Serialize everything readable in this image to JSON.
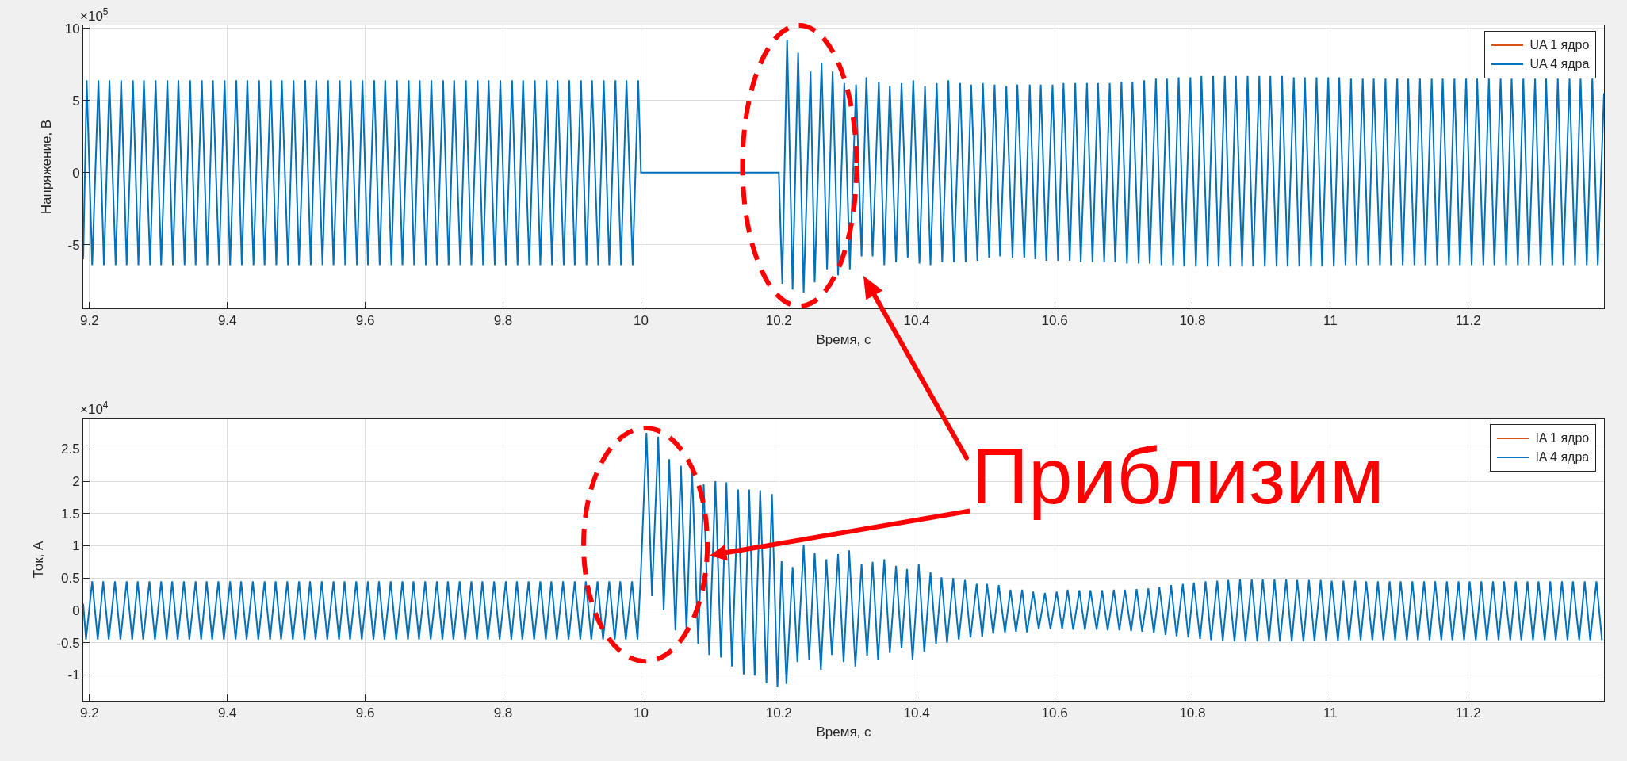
{
  "chart_data": [
    {
      "type": "line",
      "xlabel": "Время, с",
      "ylabel": "Напряжение, В",
      "xlim": [
        9.191,
        11.397
      ],
      "xticks": [
        9.2,
        9.4,
        9.6,
        9.8,
        10,
        10.2,
        10.4,
        10.6,
        10.8,
        11,
        11.2
      ],
      "ylim": [
        -9.4,
        10.2
      ],
      "yticks": [
        -5,
        0,
        5,
        10
      ],
      "grid": true,
      "legend": "top right",
      "annotations": [
        "×10$^{5}$"
      ],
      "series": [
        {
          "name": "UA 1 ядро",
          "color": "#d95319"
        },
        {
          "name": "UA 4 ядра",
          "color": "#0072bd",
          "x": [
            9.191,
            9.196,
            9.204,
            9.213,
            9.221,
            9.229,
            9.238,
            9.246,
            9.254,
            9.263,
            9.271,
            9.279,
            9.288,
            9.296,
            9.304,
            9.313,
            9.321,
            9.329,
            9.338,
            9.346,
            9.354,
            9.363,
            9.371,
            9.379,
            9.388,
            9.396,
            9.404,
            9.413,
            9.421,
            9.429,
            9.438,
            9.446,
            9.454,
            9.463,
            9.471,
            9.479,
            9.488,
            9.496,
            9.504,
            9.513,
            9.521,
            9.529,
            9.538,
            9.546,
            9.554,
            9.563,
            9.571,
            9.579,
            9.588,
            9.596,
            9.604,
            9.613,
            9.621,
            9.629,
            9.638,
            9.646,
            9.654,
            9.663,
            9.671,
            9.679,
            9.688,
            9.696,
            9.704,
            9.713,
            9.721,
            9.729,
            9.738,
            9.746,
            9.754,
            9.763,
            9.771,
            9.779,
            9.788,
            9.796,
            9.804,
            9.813,
            9.821,
            9.829,
            9.838,
            9.846,
            9.854,
            9.863,
            9.871,
            9.879,
            9.888,
            9.896,
            9.904,
            9.913,
            9.921,
            9.929,
            9.938,
            9.946,
            9.954,
            9.963,
            9.971,
            9.979,
            9.988,
            9.996,
            10.0,
            10.2,
            10.205,
            10.212,
            10.215,
            10.22,
            10.228,
            10.236,
            10.246,
            10.252,
            10.262,
            10.27,
            10.278,
            10.286,
            10.295,
            10.303,
            10.312,
            10.32,
            10.327,
            10.336,
            10.345,
            10.353,
            10.361,
            10.37,
            10.378,
            10.387,
            10.395,
            10.404,
            10.412,
            10.42,
            10.429,
            10.437,
            10.446,
            10.454,
            10.463,
            10.471,
            10.479,
            10.488,
            10.496,
            10.505,
            10.513,
            10.521,
            10.53,
            10.539,
            10.546,
            10.556,
            10.564,
            10.572,
            10.58,
            10.588,
            10.597,
            10.605,
            10.613,
            10.622,
            10.63,
            10.638,
            10.647,
            10.655,
            10.663,
            10.672,
            10.68,
            10.688,
            10.697,
            10.705,
            10.713,
            10.722,
            10.73,
            10.738,
            10.747,
            10.755,
            10.763,
            10.772,
            10.78,
            10.788,
            10.797,
            10.805,
            10.813,
            10.822,
            10.83,
            10.838,
            10.847,
            10.855,
            10.863,
            10.872,
            10.88,
            10.888,
            10.897,
            10.905,
            10.913,
            10.922,
            10.93,
            10.938,
            10.947,
            10.955,
            10.963,
            10.972,
            10.98,
            10.988,
            10.997,
            11.005,
            11.013,
            11.022,
            11.03,
            11.038,
            11.047,
            11.055,
            11.063,
            11.072,
            11.08,
            11.088,
            11.097,
            11.105,
            11.113,
            11.122,
            11.13,
            11.138,
            11.147,
            11.155,
            11.163,
            11.172,
            11.18,
            11.188,
            11.197,
            11.205,
            11.213,
            11.222,
            11.23,
            11.238,
            11.247,
            11.255,
            11.263,
            11.272,
            11.28,
            11.288,
            11.297,
            11.305,
            11.313,
            11.322,
            11.33,
            11.338,
            11.347,
            11.355,
            11.363,
            11.372,
            11.38,
            11.388,
            11.397
          ],
          "values": [
            -6.0,
            6.4,
            -6.4,
            6.4,
            -6.4,
            6.4,
            -6.4,
            6.4,
            -6.4,
            6.4,
            -6.4,
            6.4,
            -6.4,
            6.4,
            -6.4,
            6.4,
            -6.4,
            6.4,
            -6.4,
            6.4,
            -6.4,
            6.4,
            -6.4,
            6.4,
            -6.4,
            6.4,
            -6.4,
            6.4,
            -6.4,
            6.4,
            -6.4,
            6.4,
            -6.4,
            6.4,
            -6.4,
            6.4,
            -6.4,
            6.4,
            -6.4,
            6.4,
            -6.4,
            6.4,
            -6.4,
            6.4,
            -6.4,
            6.4,
            -6.4,
            6.4,
            -6.4,
            6.4,
            -6.4,
            6.4,
            -6.4,
            6.4,
            -6.4,
            6.4,
            -6.4,
            6.4,
            -6.4,
            6.4,
            -6.4,
            6.4,
            -6.4,
            6.4,
            -6.4,
            6.4,
            -6.4,
            6.4,
            -6.4,
            6.4,
            -6.4,
            6.4,
            -6.4,
            6.4,
            -6.4,
            6.4,
            -6.4,
            6.4,
            -6.4,
            6.4,
            -6.4,
            6.4,
            -6.4,
            6.4,
            -6.4,
            6.4,
            -6.4,
            6.4,
            -6.4,
            6.4,
            -6.4,
            6.4,
            -6.4,
            6.4,
            -6.4,
            6.4,
            -6.4,
            6.4,
            0,
            0,
            -7.7,
            9.2,
            3.3,
            -8.1,
            8.3,
            -8.3,
            7.0,
            -7.6,
            7.6,
            -6.7,
            7.0,
            -7.1,
            6.2,
            -6.7,
            6.1,
            -5.8,
            6.6,
            -5.8,
            6.3,
            -6.4,
            6.0,
            -6.2,
            6.2,
            -5.9,
            6.4,
            -6.3,
            6.0,
            -6.4,
            6.2,
            -6.2,
            6.4,
            -6.2,
            6.2,
            -6.2,
            6.1,
            -6.1,
            6.2,
            -5.9,
            6.1,
            -5.8,
            6.0,
            -5.9,
            6.1,
            -5.9,
            6.1,
            -6.0,
            6.1,
            -6.1,
            6.1,
            -6.1,
            6.2,
            -6.1,
            6.2,
            -6.2,
            6.2,
            -6.2,
            6.2,
            -6.2,
            6.2,
            -6.2,
            6.3,
            -6.3,
            6.3,
            -6.3,
            6.4,
            -6.3,
            6.5,
            -6.4,
            6.5,
            -6.4,
            6.6,
            -6.5,
            6.6,
            -6.5,
            6.7,
            -6.5,
            6.7,
            -6.5,
            6.7,
            -6.5,
            6.7,
            -6.5,
            6.7,
            -6.5,
            6.7,
            -6.5,
            6.7,
            -6.5,
            6.7,
            -6.5,
            6.6,
            -6.5,
            6.6,
            -6.5,
            6.6,
            -6.5,
            6.6,
            -6.5,
            6.6,
            -6.4,
            6.5,
            -6.4,
            6.5,
            -6.4,
            6.5,
            -6.4,
            6.5,
            -6.4,
            6.5,
            -6.4,
            6.5,
            -6.4,
            6.5,
            -6.4,
            6.5,
            -6.4,
            6.5,
            -6.4,
            6.5,
            -6.4,
            6.5,
            -6.4,
            6.5,
            -6.4,
            6.5,
            -6.4,
            6.5,
            -6.4,
            6.5,
            -6.4,
            6.5,
            -6.4,
            6.5,
            -6.4,
            6.5,
            -6.4,
            6.5,
            -6.4,
            6.5,
            -6.4,
            6.5,
            -6.4,
            6.5,
            -6.4,
            5.5
          ]
        }
      ]
    },
    {
      "type": "line",
      "xlabel": "Время, с",
      "ylabel": "Ток, А",
      "xlim": [
        9.191,
        11.397
      ],
      "xticks": [
        9.2,
        9.4,
        9.6,
        9.8,
        10,
        10.2,
        10.4,
        10.6,
        10.8,
        11,
        11.2
      ],
      "ylim": [
        -1.4,
        2.97
      ],
      "yticks": [
        -1,
        -0.5,
        0,
        0.5,
        1,
        1.5,
        2,
        2.5
      ],
      "grid": true,
      "legend": "top right",
      "annotations": [
        "×10$^{4}$",
        {
          "text": "Приблизим",
          "x": 10.1,
          "y": 0.85
        }
      ],
      "series": [
        {
          "name": "IA 1 ядро",
          "color": "#d95319"
        },
        {
          "name": "IA 4 ядра",
          "color": "#0072bd",
          "x": [
            9.191,
            9.195,
            9.204,
            9.212,
            9.22,
            9.228,
            9.237,
            9.245,
            9.254,
            9.262,
            9.27,
            9.278,
            9.287,
            9.295,
            9.304,
            9.312,
            9.32,
            9.328,
            9.337,
            9.345,
            9.354,
            9.362,
            9.37,
            9.378,
            9.387,
            9.395,
            9.404,
            9.412,
            9.42,
            9.428,
            9.437,
            9.445,
            9.454,
            9.462,
            9.47,
            9.478,
            9.487,
            9.495,
            9.504,
            9.512,
            9.52,
            9.528,
            9.537,
            9.545,
            9.554,
            9.562,
            9.57,
            9.578,
            9.587,
            9.595,
            9.604,
            9.612,
            9.62,
            9.628,
            9.637,
            9.645,
            9.654,
            9.662,
            9.67,
            9.678,
            9.687,
            9.695,
            9.704,
            9.712,
            9.72,
            9.728,
            9.737,
            9.745,
            9.754,
            9.762,
            9.77,
            9.778,
            9.787,
            9.795,
            9.804,
            9.812,
            9.82,
            9.828,
            9.837,
            9.845,
            9.854,
            9.862,
            9.87,
            9.878,
            9.887,
            9.895,
            9.904,
            9.912,
            9.92,
            9.928,
            9.937,
            9.945,
            9.954,
            9.962,
            9.97,
            9.978,
            9.987,
            9.995,
            10.0,
            10.008,
            10.016,
            10.025,
            10.033,
            10.041,
            10.05,
            10.058,
            10.066,
            10.074,
            10.083,
            10.091,
            10.099,
            10.108,
            10.116,
            10.124,
            10.132,
            10.141,
            10.149,
            10.157,
            10.165,
            10.173,
            10.182,
            10.19,
            10.198,
            10.204,
            10.211,
            10.22,
            10.227,
            10.236,
            10.244,
            10.252,
            10.261,
            10.269,
            10.277,
            10.286,
            10.294,
            10.302,
            10.311,
            10.32,
            10.328,
            10.336,
            10.344,
            10.353,
            10.361,
            10.37,
            10.378,
            10.386,
            10.394,
            10.403,
            10.411,
            10.42,
            10.428,
            10.436,
            10.444,
            10.453,
            10.461,
            10.47,
            10.478,
            10.487,
            10.495,
            10.502,
            10.511,
            10.519,
            10.528,
            10.536,
            10.544,
            10.553,
            10.56,
            10.569,
            10.577,
            10.586,
            10.594,
            10.603,
            10.611,
            10.619,
            10.627,
            10.636,
            10.644,
            10.652,
            10.661,
            10.669,
            10.677,
            10.686,
            10.694,
            10.702,
            10.711,
            10.719,
            10.727,
            10.736,
            10.744,
            10.752,
            10.761,
            10.769,
            10.777,
            10.786,
            10.794,
            10.802,
            10.811,
            10.819,
            10.827,
            10.836,
            10.844,
            10.852,
            10.861,
            10.869,
            10.877,
            10.886,
            10.894,
            10.902,
            10.911,
            10.919,
            10.927,
            10.936,
            10.944,
            10.952,
            10.961,
            10.969,
            10.977,
            10.986,
            10.994,
            11.002,
            11.011,
            11.019,
            11.027,
            11.036,
            11.044,
            11.052,
            11.061,
            11.069,
            11.077,
            11.086,
            11.094,
            11.102,
            11.111,
            11.119,
            11.127,
            11.136,
            11.144,
            11.152,
            11.161,
            11.169,
            11.177,
            11.186,
            11.194,
            11.202,
            11.211,
            11.219,
            11.227,
            11.236,
            11.244,
            11.252,
            11.261,
            11.269,
            11.277,
            11.286,
            11.294,
            11.302,
            11.311,
            11.319,
            11.327,
            11.336,
            11.344,
            11.352,
            11.361,
            11.369,
            11.377,
            11.386,
            11.394
          ],
          "values": [
            0.1,
            -0.45,
            0.45,
            -0.45,
            0.45,
            -0.45,
            0.45,
            -0.45,
            0.45,
            -0.45,
            0.45,
            -0.45,
            0.45,
            -0.45,
            0.45,
            -0.45,
            0.45,
            -0.45,
            0.45,
            -0.45,
            0.45,
            -0.45,
            0.45,
            -0.45,
            0.45,
            -0.45,
            0.45,
            -0.45,
            0.45,
            -0.45,
            0.45,
            -0.45,
            0.45,
            -0.45,
            0.45,
            -0.45,
            0.45,
            -0.45,
            0.45,
            -0.45,
            0.45,
            -0.45,
            0.45,
            -0.45,
            0.45,
            -0.45,
            0.45,
            -0.45,
            0.45,
            -0.45,
            0.45,
            -0.45,
            0.45,
            -0.45,
            0.45,
            -0.45,
            0.45,
            -0.45,
            0.45,
            -0.45,
            0.45,
            -0.45,
            0.45,
            -0.45,
            0.45,
            -0.45,
            0.45,
            -0.45,
            0.45,
            -0.45,
            0.45,
            -0.45,
            0.45,
            -0.45,
            0.45,
            -0.45,
            0.45,
            -0.45,
            0.45,
            -0.45,
            0.45,
            -0.45,
            0.45,
            -0.45,
            0.45,
            -0.45,
            0.45,
            -0.45,
            0.45,
            -0.45,
            0.45,
            -0.45,
            0.45,
            -0.45,
            0.45,
            -0.45,
            0.45,
            -0.45,
            0.6,
            2.75,
            0.22,
            2.69,
            0.0,
            2.34,
            -0.31,
            2.24,
            -0.31,
            2.2,
            -0.52,
            1.95,
            -0.69,
            2.0,
            -0.73,
            1.98,
            -0.87,
            1.87,
            -0.99,
            1.87,
            -1.01,
            1.86,
            -1.13,
            1.8,
            -1.19,
            0.76,
            -1.14,
            0.67,
            -0.8,
            1.01,
            -0.76,
            0.89,
            -0.92,
            0.79,
            -0.69,
            0.87,
            -0.8,
            0.93,
            -0.87,
            0.71,
            -0.7,
            0.75,
            -0.76,
            0.79,
            -0.66,
            0.69,
            -0.59,
            0.64,
            -0.76,
            0.71,
            -0.64,
            0.59,
            -0.52,
            0.51,
            -0.5,
            0.5,
            -0.45,
            0.47,
            -0.42,
            0.41,
            -0.41,
            0.41,
            -0.36,
            0.39,
            -0.34,
            0.32,
            -0.33,
            0.32,
            -0.34,
            0.29,
            -0.29,
            0.27,
            -0.29,
            0.29,
            -0.28,
            0.32,
            -0.3,
            0.31,
            -0.3,
            0.31,
            -0.3,
            0.31,
            -0.31,
            0.32,
            -0.31,
            0.32,
            -0.32,
            0.33,
            -0.33,
            0.34,
            -0.35,
            0.36,
            -0.38,
            0.39,
            -0.4,
            0.41,
            -0.42,
            0.43,
            -0.44,
            0.45,
            -0.46,
            0.46,
            -0.47,
            0.47,
            -0.48,
            0.48,
            -0.48,
            0.48,
            -0.48,
            0.48,
            -0.48,
            0.48,
            -0.48,
            0.48,
            -0.48,
            0.47,
            -0.48,
            0.47,
            -0.47,
            0.47,
            -0.47,
            0.46,
            -0.47,
            0.46,
            -0.46,
            0.46,
            -0.46,
            0.45,
            -0.46,
            0.45,
            -0.46,
            0.45,
            -0.46,
            0.45,
            -0.46,
            0.45,
            -0.46,
            0.45,
            -0.46,
            0.45,
            -0.46,
            0.45,
            -0.46,
            0.45,
            -0.46,
            0.45,
            -0.46,
            0.45,
            -0.46,
            0.45,
            -0.46,
            0.45,
            -0.46,
            0.45,
            -0.46,
            0.45,
            -0.46,
            0.45,
            -0.46,
            0.45,
            -0.46,
            0.45,
            -0.46,
            0.45,
            -0.46,
            0.45,
            -0.46,
            0.45,
            -0.46
          ]
        }
      ]
    }
  ]
}
